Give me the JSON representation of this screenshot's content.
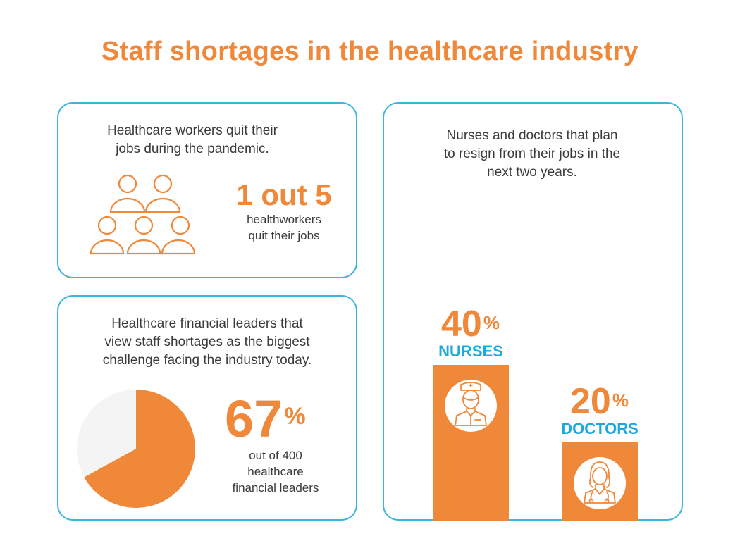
{
  "title": "Staff shortages in the healthcare industry",
  "colors": {
    "accent": "#F0883A",
    "blue": "#1EA9DE",
    "border": "#38B6E0",
    "pie_rest": "#F4F4F4",
    "text": "#3a3a3a"
  },
  "card_quit": {
    "desc_line1": "Healthcare workers quit their",
    "desc_line2": "jobs during the pandemic.",
    "stat": "1 out 5",
    "sub_line1": "healthworkers",
    "sub_line2": "quit their jobs",
    "icon": "group-of-people-icon"
  },
  "card_leaders": {
    "desc_line1": "Healthcare financial leaders that",
    "desc_line2": "view staff shortages as the biggest",
    "desc_line3": "challenge facing the industry today.",
    "stat_value": "67",
    "stat_unit": "%",
    "sub_line1": "out of 400",
    "sub_line2": "healthcare",
    "sub_line3": "financial leaders"
  },
  "card_resign": {
    "desc_line1": "Nurses and doctors that plan",
    "desc_line2": "to resign from their jobs in the",
    "desc_line3": "next two years."
  },
  "chart_data": [
    {
      "type": "pie",
      "slices": [
        {
          "label": "",
          "value": 67,
          "color": "#F0883A"
        },
        {
          "label": "",
          "value": 33,
          "color": "#F4F4F4"
        }
      ]
    },
    {
      "type": "bar",
      "categories": [
        "NURSES",
        "DOCTORS"
      ],
      "values": [
        40,
        20
      ],
      "value_labels": [
        "40",
        "20"
      ],
      "unit": "%",
      "icons": [
        "nurse-icon",
        "doctor-icon"
      ],
      "color": "#F0883A"
    }
  ]
}
